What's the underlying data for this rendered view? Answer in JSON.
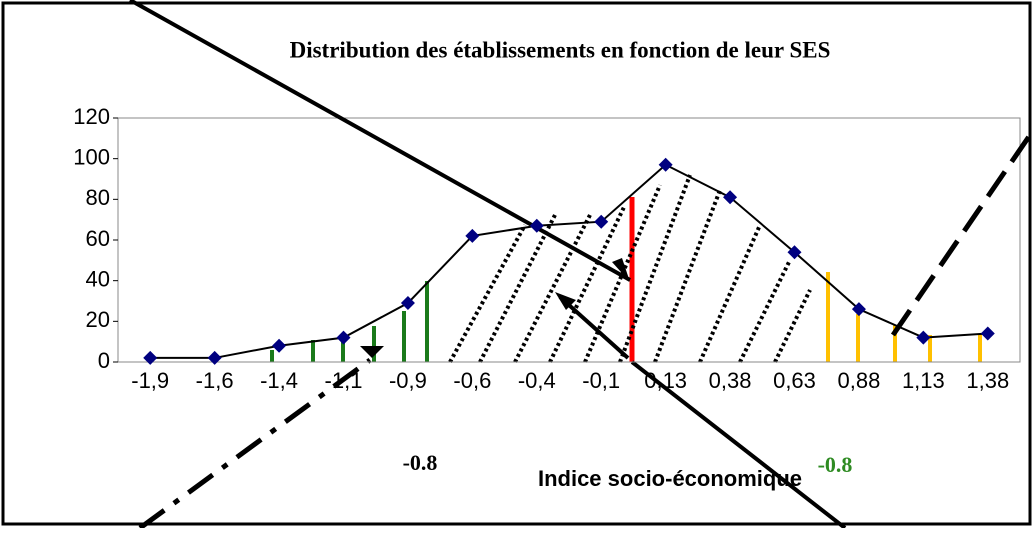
{
  "chart_data": {
    "type": "line",
    "title": "Distribution des établissements en fonction de leur SES",
    "x_label": "Indice socio-économique",
    "annotations": [
      "-0.8",
      "-0.8"
    ],
    "categories": [
      "-1,9",
      "-1,6",
      "-1,4",
      "-1,1",
      "-0,9",
      "-0,6",
      "-0,4",
      "-0,1",
      "0,13",
      "0,38",
      "0,63",
      "0,88",
      "1,13",
      "1,38"
    ],
    "series": [
      {
        "name": "SES",
        "color": "#000080",
        "values": [
          2,
          2,
          8,
          12,
          29,
          62,
          67,
          69,
          97,
          81,
          54,
          26,
          12,
          14
        ]
      }
    ],
    "ylim": [
      0,
      120
    ],
    "yticks": [
      0,
      20,
      40,
      60,
      80,
      100,
      120
    ],
    "grid": false
  }
}
